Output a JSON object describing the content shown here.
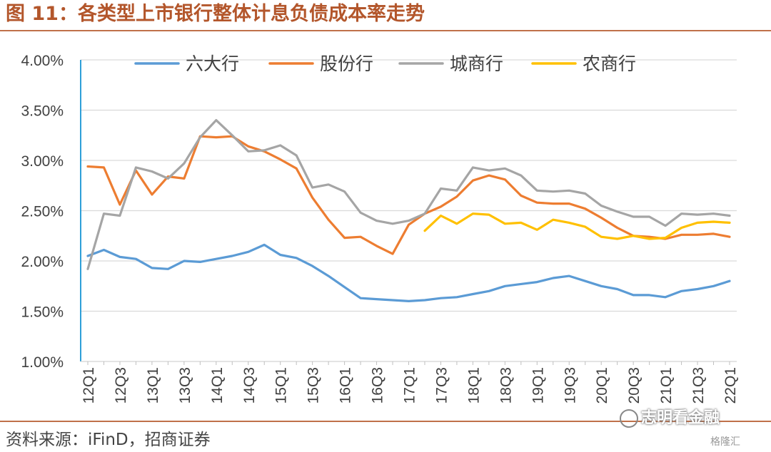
{
  "figure": {
    "title": "图 11：各类型上市银行整体计息负债成本率走势",
    "source": "资料来源：iFinD，招商证券",
    "watermark": "志明看金融",
    "watermark_corner": "格隆汇"
  },
  "chart_data": {
    "type": "line",
    "x": [
      "12Q1",
      "12Q2",
      "12Q3",
      "12Q4",
      "13Q1",
      "13Q2",
      "13Q3",
      "13Q4",
      "14Q1",
      "14Q2",
      "14Q3",
      "14Q4",
      "15Q1",
      "15Q2",
      "15Q3",
      "15Q4",
      "16Q1",
      "16Q2",
      "16Q3",
      "16Q4",
      "17Q1",
      "17Q2",
      "17Q3",
      "17Q4",
      "18Q1",
      "18Q2",
      "18Q3",
      "18Q4",
      "19Q1",
      "19Q2",
      "19Q3",
      "19Q4",
      "20Q1",
      "20Q2",
      "20Q3",
      "20Q4",
      "21Q1",
      "21Q2",
      "21Q3",
      "21Q4",
      "22Q1"
    ],
    "tick_labels": [
      "12Q1",
      "12Q3",
      "13Q1",
      "13Q3",
      "14Q1",
      "14Q3",
      "15Q1",
      "15Q3",
      "16Q1",
      "16Q3",
      "17Q1",
      "17Q3",
      "18Q1",
      "18Q3",
      "19Q1",
      "19Q3",
      "20Q1",
      "20Q3",
      "21Q1",
      "21Q3",
      "22Q1"
    ],
    "ylim": [
      1.0,
      4.0
    ],
    "yticks": [
      "1.00%",
      "1.50%",
      "2.00%",
      "2.50%",
      "3.00%",
      "3.50%",
      "4.00%"
    ],
    "grid": true,
    "legend_position": "top",
    "series": [
      {
        "name": "六大行",
        "color": "#5b9bd5",
        "values": [
          2.05,
          2.11,
          2.04,
          2.02,
          1.93,
          1.92,
          2.0,
          1.99,
          2.02,
          2.05,
          2.09,
          2.16,
          2.06,
          2.03,
          1.95,
          1.85,
          1.74,
          1.63,
          1.62,
          1.61,
          1.6,
          1.61,
          1.63,
          1.64,
          1.67,
          1.7,
          1.75,
          1.77,
          1.79,
          1.83,
          1.85,
          1.8,
          1.75,
          1.72,
          1.66,
          1.66,
          1.64,
          1.7,
          1.72,
          1.75,
          1.8
        ]
      },
      {
        "name": "股份行",
        "color": "#ed7d31",
        "values": [
          2.94,
          2.93,
          2.56,
          2.9,
          2.66,
          2.84,
          2.82,
          3.24,
          3.23,
          3.24,
          3.14,
          3.09,
          3.01,
          2.92,
          2.63,
          2.41,
          2.23,
          2.24,
          2.15,
          2.07,
          2.36,
          2.47,
          2.54,
          2.64,
          2.8,
          2.85,
          2.81,
          2.65,
          2.58,
          2.57,
          2.57,
          2.52,
          2.43,
          2.33,
          2.25,
          2.24,
          2.22,
          2.26,
          2.26,
          2.27,
          2.24
        ]
      },
      {
        "name": "城商行",
        "color": "#a5a5a5",
        "values": [
          1.92,
          2.47,
          2.45,
          2.93,
          2.89,
          2.82,
          2.97,
          3.23,
          3.4,
          3.25,
          3.09,
          3.1,
          3.15,
          3.05,
          2.73,
          2.76,
          2.69,
          2.48,
          2.4,
          2.37,
          2.4,
          2.47,
          2.72,
          2.7,
          2.93,
          2.9,
          2.92,
          2.85,
          2.7,
          2.69,
          2.7,
          2.67,
          2.55,
          2.49,
          2.44,
          2.44,
          2.35,
          2.47,
          2.46,
          2.47,
          2.45
        ]
      },
      {
        "name": "农商行",
        "color": "#ffc000",
        "values": [
          null,
          null,
          null,
          null,
          null,
          null,
          null,
          null,
          null,
          null,
          null,
          null,
          null,
          null,
          null,
          null,
          null,
          null,
          null,
          null,
          null,
          2.3,
          2.45,
          2.37,
          2.47,
          2.46,
          2.37,
          2.38,
          2.31,
          2.41,
          2.38,
          2.34,
          2.24,
          2.22,
          2.25,
          2.22,
          2.23,
          2.33,
          2.38,
          2.39,
          2.38
        ]
      }
    ]
  }
}
